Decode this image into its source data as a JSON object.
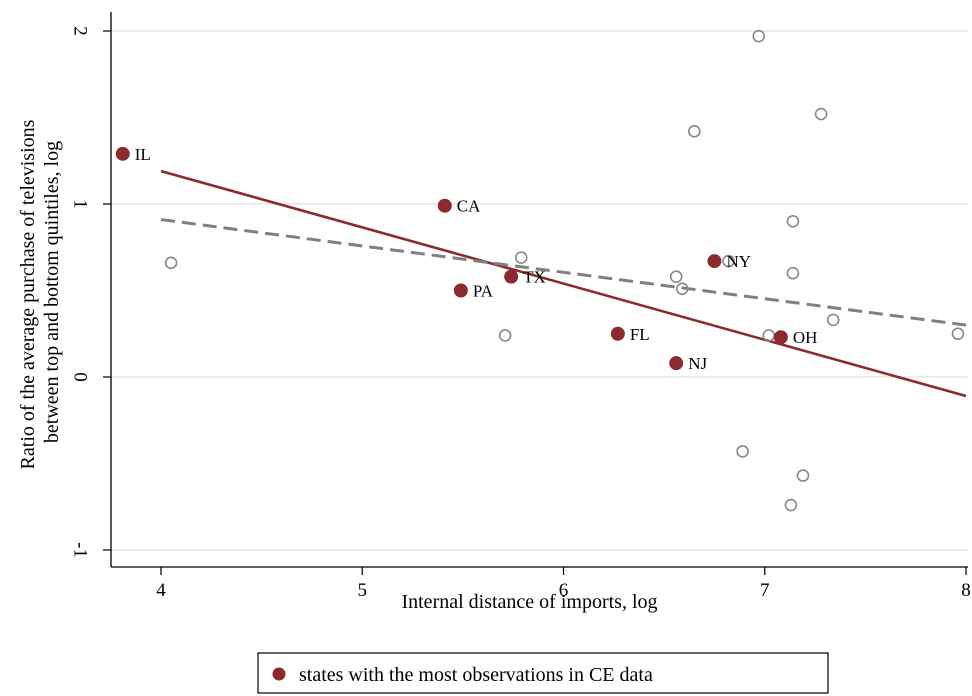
{
  "chart_data": {
    "type": "scatter",
    "xlabel": "Internal distance of imports, log",
    "ylabel_lines": [
      "Ratio of the average purchase of televisions",
      "between top and bottom quintiles, log"
    ],
    "xlim": [
      3.75,
      8.0
    ],
    "ylim": [
      -1.1,
      2.1
    ],
    "xticks": [
      4,
      5,
      6,
      7,
      8
    ],
    "yticks": [
      -1,
      0,
      1,
      2
    ],
    "grid": "horizontal",
    "series": [
      {
        "name": "states with the most observations in CE data",
        "marker": "filled-circle",
        "color": "#8b2b30",
        "points": [
          {
            "x": 3.81,
            "y": 1.29,
            "label": "IL"
          },
          {
            "x": 5.41,
            "y": 0.99,
            "label": "CA"
          },
          {
            "x": 5.49,
            "y": 0.5,
            "label": "PA"
          },
          {
            "x": 5.74,
            "y": 0.58,
            "label": "TX"
          },
          {
            "x": 6.27,
            "y": 0.25,
            "label": "FL"
          },
          {
            "x": 6.56,
            "y": 0.08,
            "label": "NJ"
          },
          {
            "x": 6.75,
            "y": 0.67,
            "label": "NY"
          },
          {
            "x": 7.08,
            "y": 0.23,
            "label": "OH"
          }
        ]
      },
      {
        "marker": "hollow-circle",
        "color": "#888888",
        "points": [
          {
            "x": 4.05,
            "y": 0.66
          },
          {
            "x": 5.71,
            "y": 0.24
          },
          {
            "x": 5.79,
            "y": 0.69
          },
          {
            "x": 6.56,
            "y": 0.58
          },
          {
            "x": 6.59,
            "y": 0.51
          },
          {
            "x": 6.65,
            "y": 1.42
          },
          {
            "x": 6.82,
            "y": 0.67
          },
          {
            "x": 6.89,
            "y": -0.43
          },
          {
            "x": 6.97,
            "y": 1.97
          },
          {
            "x": 7.02,
            "y": 0.24
          },
          {
            "x": 7.13,
            "y": -0.74
          },
          {
            "x": 7.14,
            "y": 0.6
          },
          {
            "x": 7.14,
            "y": 0.9
          },
          {
            "x": 7.19,
            "y": -0.57
          },
          {
            "x": 7.28,
            "y": 1.52
          },
          {
            "x": 7.34,
            "y": 0.33
          },
          {
            "x": 7.96,
            "y": 0.25
          }
        ]
      }
    ],
    "fit_lines": [
      {
        "style": "solid",
        "color": "#8b2b30",
        "x": [
          4.0,
          8.0
        ],
        "y": [
          1.19,
          -0.11
        ]
      },
      {
        "style": "dashed",
        "color": "#808080",
        "x": [
          4.0,
          8.0
        ],
        "y": [
          0.91,
          0.3
        ]
      }
    ],
    "legend": {
      "position": "bottom",
      "entries": [
        {
          "text": "states with the most observations in CE data",
          "marker": "filled-circle",
          "color": "#8b2b30"
        }
      ]
    }
  }
}
